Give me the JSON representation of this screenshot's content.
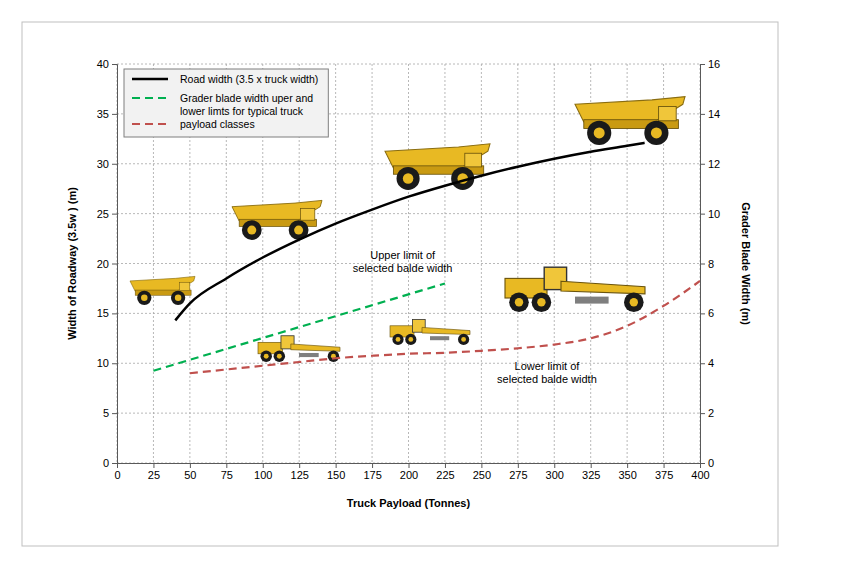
{
  "chart_data": {
    "type": "line",
    "x_label": "Truck Payload (Tonnes)",
    "y_label": "Width of Roadway (3.5w ) (m)",
    "y2_label": "Grader Blade Width (m)",
    "xlim": [
      0,
      400
    ],
    "xticks": [
      0,
      25,
      50,
      75,
      100,
      125,
      150,
      175,
      200,
      225,
      250,
      275,
      300,
      325,
      350,
      375,
      400
    ],
    "ylim": [
      0,
      40
    ],
    "yticks": [
      0,
      5,
      10,
      15,
      20,
      25,
      30,
      35,
      40
    ],
    "y2lim": [
      0,
      16
    ],
    "y2ticks": [
      0,
      2,
      4,
      6,
      8,
      10,
      12,
      14,
      16
    ],
    "grid": true,
    "legend": "upper left",
    "series": [
      {
        "name": "Road width (3.5 x truck width)",
        "color": "#000000",
        "line_style": "solid",
        "x": [
          40,
          50,
          75,
          100,
          125,
          150,
          175,
          200,
          225,
          250,
          275,
          300,
          325,
          350,
          362
        ],
        "values": [
          14.3,
          16.0,
          18.5,
          20.6,
          22.4,
          24.0,
          25.4,
          26.7,
          27.8,
          28.8,
          29.7,
          30.5,
          31.2,
          31.8,
          32.1
        ]
      },
      {
        "name": "Grader blade width uper and lower limts for typical truck payload classes",
        "color": "#00b050",
        "line_style": "dashed",
        "axis": "y2",
        "x": [
          25,
          225
        ],
        "values": [
          3.7,
          7.2
        ]
      },
      {
        "name": null,
        "color": "#c0504d",
        "line_style": "dashed",
        "axis": "y2",
        "x": [
          50,
          75,
          100,
          125,
          150,
          175,
          200,
          225,
          250,
          275,
          300,
          325,
          350,
          375,
          400
        ],
        "values": [
          3.6,
          3.75,
          3.9,
          4.05,
          4.2,
          4.3,
          4.38,
          4.42,
          4.5,
          4.6,
          4.75,
          5.0,
          5.5,
          6.3,
          7.3
        ]
      }
    ],
    "annotations": [
      {
        "text": [
          "Upper limit of",
          "selected balde width"
        ],
        "x": 196,
        "y": 20.5
      },
      {
        "text": [
          "Lower limit of",
          "selected balde width"
        ],
        "x": 295,
        "y": 9.3
      }
    ]
  }
}
